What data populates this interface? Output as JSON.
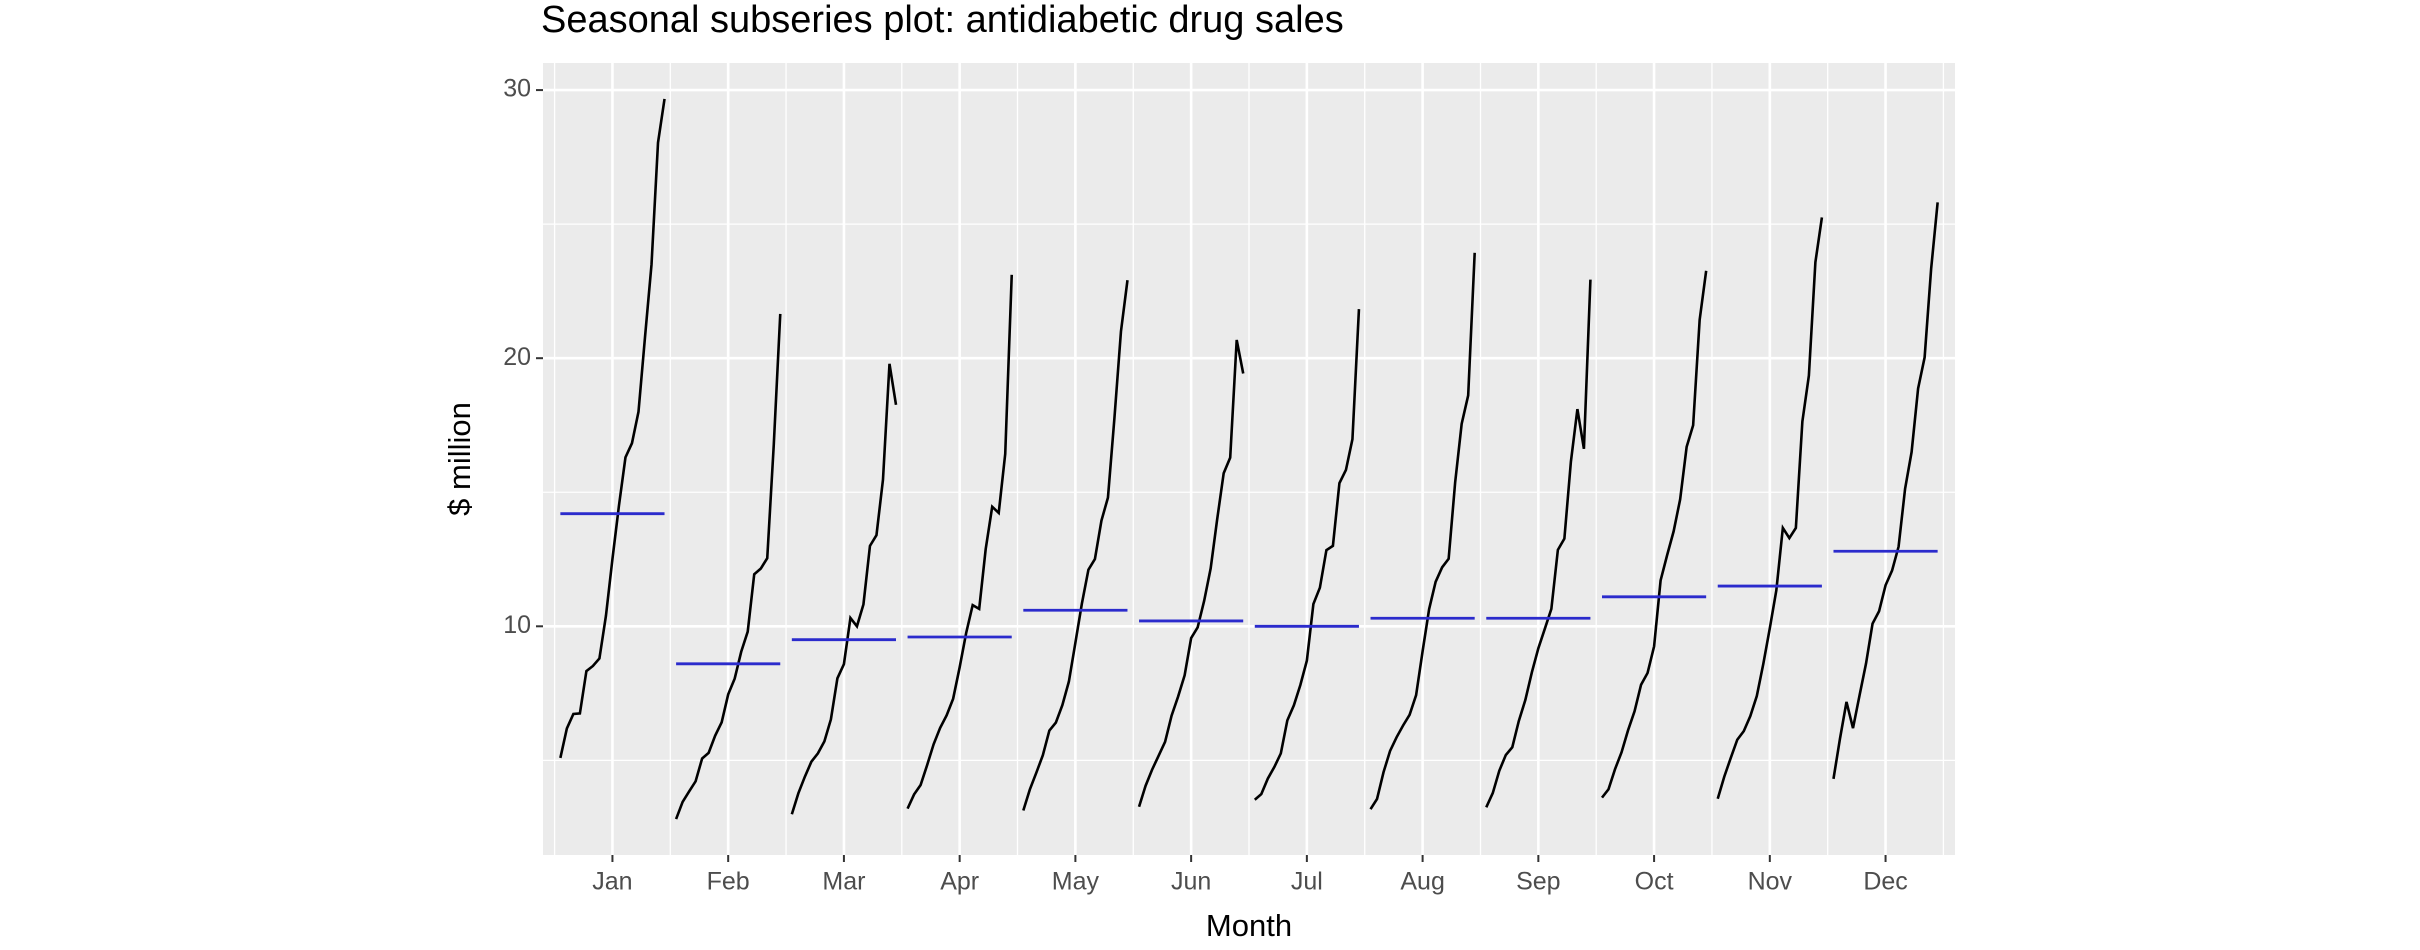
{
  "chart_data": {
    "type": "subseries",
    "title": "Seasonal subseries plot: antidiabetic drug sales",
    "x_label": "Month",
    "y_label": "$ million",
    "categories": [
      "Jan",
      "Feb",
      "Mar",
      "Apr",
      "May",
      "Jun",
      "Jul",
      "Aug",
      "Sep",
      "Oct",
      "Nov",
      "Dec"
    ],
    "color": "#000000",
    "mean_color": "#2b2bcc",
    "values": [
      [
        5.09,
        6.19,
        6.73,
        6.75,
        8.33,
        8.52,
        8.8,
        10.39,
        12.51,
        14.5,
        16.3,
        16.83,
        18.0,
        20.78,
        23.49,
        28.04,
        29.67
      ],
      [
        2.81,
        3.45,
        3.84,
        4.22,
        5.07,
        5.28,
        5.92,
        6.42,
        7.46,
        8.05,
        9.05,
        9.8,
        11.94,
        12.15,
        12.54,
        16.76,
        21.65
      ],
      [
        2.99,
        3.77,
        4.39,
        4.95,
        5.26,
        5.71,
        6.53,
        8.06,
        8.59,
        10.31,
        10.0,
        10.82,
        13.0,
        13.4,
        15.47,
        19.79,
        18.26
      ],
      [
        3.2,
        3.73,
        4.08,
        4.82,
        5.6,
        6.21,
        6.68,
        7.3,
        8.47,
        9.75,
        10.79,
        10.65,
        12.88,
        14.46,
        14.23,
        16.43,
        23.11
      ],
      [
        3.13,
        3.91,
        4.54,
        5.19,
        6.11,
        6.41,
        7.06,
        7.94,
        9.39,
        10.85,
        12.11,
        12.51,
        13.94,
        14.8,
        17.78,
        21.0,
        22.91
      ],
      [
        3.27,
        4.05,
        4.65,
        5.17,
        5.69,
        6.67,
        7.38,
        8.17,
        9.56,
        9.96,
        10.95,
        12.16,
        13.99,
        15.71,
        16.29,
        20.68,
        19.43
      ],
      [
        3.53,
        3.74,
        4.32,
        4.75,
        5.26,
        6.49,
        7.05,
        7.81,
        8.72,
        10.83,
        11.44,
        12.84,
        13.0,
        15.34,
        15.83,
        16.98,
        21.83
      ],
      [
        3.18,
        3.56,
        4.56,
        5.35,
        5.86,
        6.3,
        6.7,
        7.43,
        9.07,
        10.64,
        11.66,
        12.2,
        12.52,
        15.37,
        17.55,
        18.61,
        23.93
      ],
      [
        3.25,
        3.78,
        4.61,
        5.2,
        5.49,
        6.47,
        7.25,
        8.28,
        9.18,
        9.91,
        10.65,
        12.85,
        13.27,
        16.14,
        18.1,
        16.62,
        22.93
      ],
      [
        3.61,
        3.92,
        4.67,
        5.3,
        6.12,
        6.83,
        7.82,
        8.26,
        9.25,
        11.71,
        12.65,
        13.54,
        14.73,
        16.69,
        17.5,
        21.43,
        23.26
      ],
      [
        3.57,
        4.39,
        5.09,
        5.77,
        6.09,
        6.65,
        7.4,
        8.6,
        9.93,
        11.34,
        13.67,
        13.29,
        13.67,
        17.64,
        19.35,
        23.58,
        25.25
      ],
      [
        4.31,
        5.81,
        7.18,
        6.2,
        7.42,
        8.61,
        10.1,
        10.56,
        11.53,
        12.08,
        12.97,
        15.13,
        16.5,
        18.87,
        20.03,
        23.33,
        25.81
      ]
    ],
    "means": [
      14.2,
      8.6,
      9.5,
      9.6,
      10.6,
      10.2,
      10.0,
      10.3,
      10.3,
      11.1,
      11.5,
      12.8
    ],
    "ylim": [
      1.47,
      31.01
    ],
    "yticks": [
      10,
      20,
      30
    ],
    "grid": true
  }
}
